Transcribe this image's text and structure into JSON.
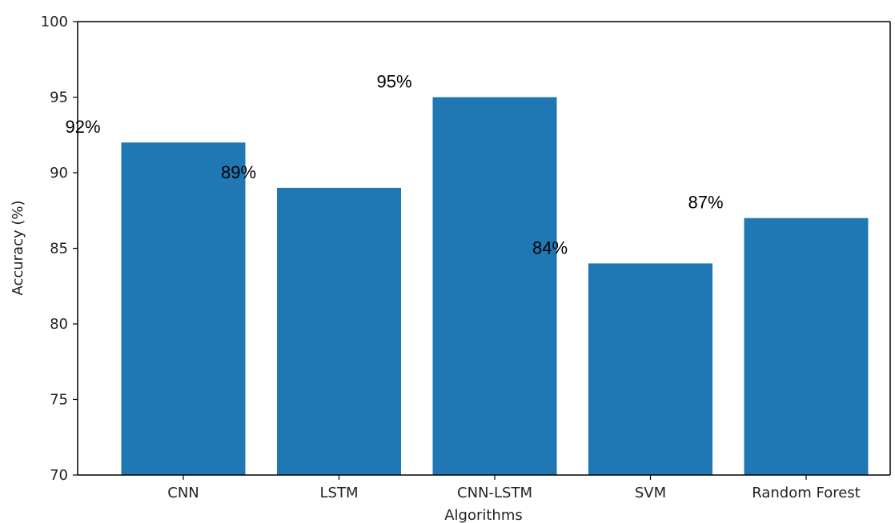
{
  "chart_data": {
    "type": "bar",
    "title": "",
    "xlabel": "Algorithms",
    "ylabel": "Accuracy (%)",
    "categories": [
      "CNN",
      "LSTM",
      "CNN-LSTM",
      "SVM",
      "Random Forest"
    ],
    "values": [
      92,
      89,
      95,
      84,
      87
    ],
    "data_labels": [
      "92%",
      "89%",
      "95%",
      "84%",
      "87%"
    ],
    "ylim": [
      70,
      100
    ],
    "yticks": [
      70,
      75,
      80,
      85,
      90,
      95,
      100
    ],
    "grid": false,
    "legend": "none",
    "bar_color": "#1f77b4"
  }
}
